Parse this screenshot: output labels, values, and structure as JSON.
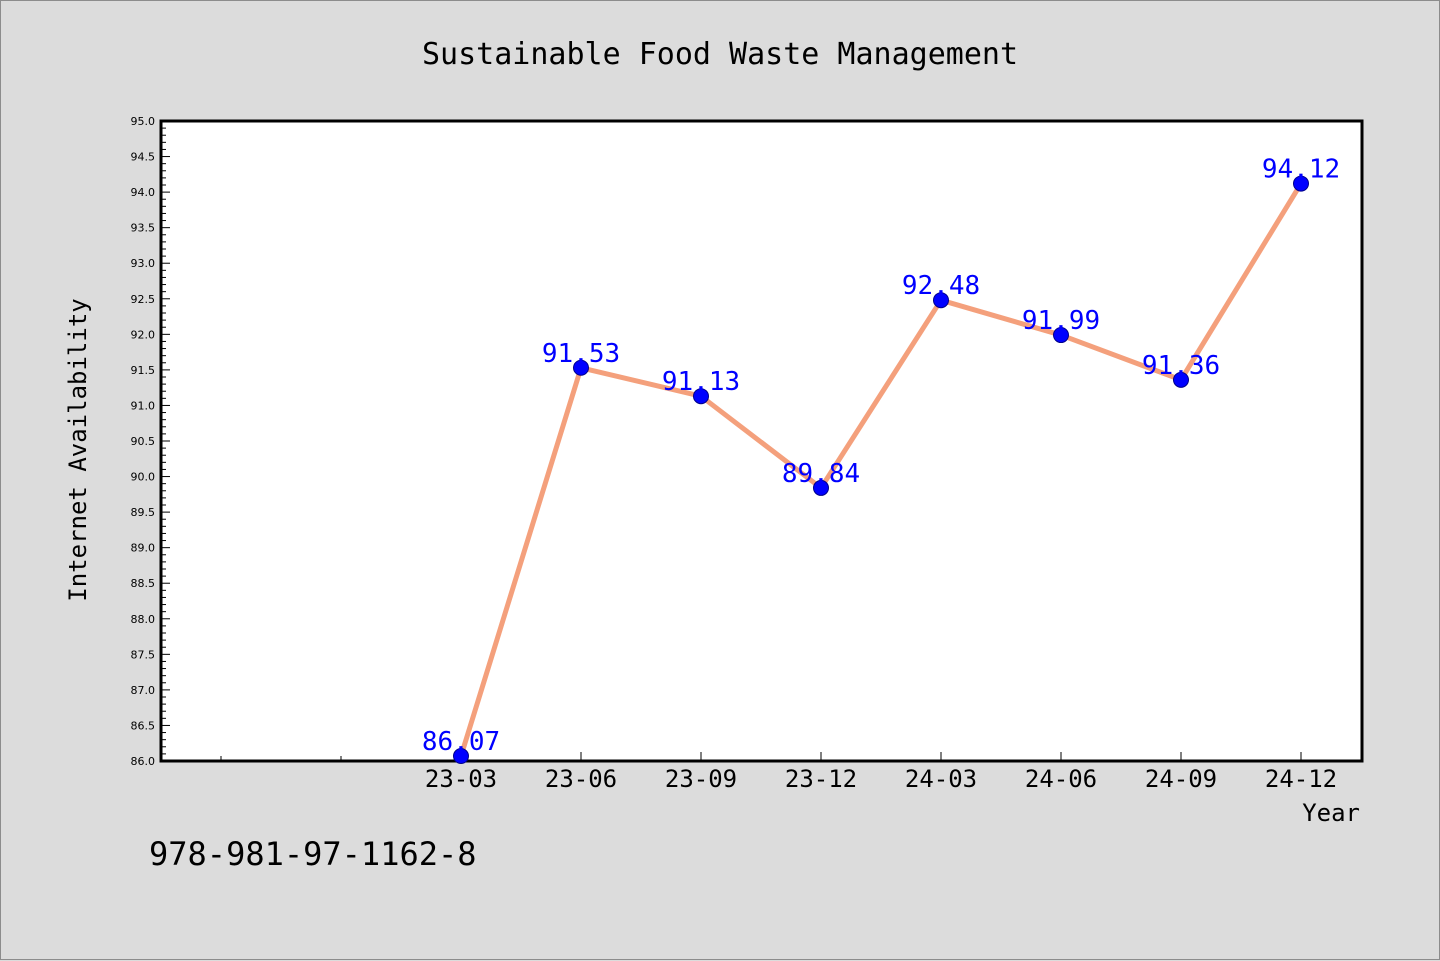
{
  "chart_data": {
    "type": "line",
    "title": "Sustainable Food Waste Management",
    "xlabel": "Year",
    "ylabel": "Internet Availability",
    "categories": [
      "23-03",
      "23-06",
      "23-09",
      "23-12",
      "24-03",
      "24-06",
      "24-09",
      "24-12"
    ],
    "series": [
      {
        "values": [
          86.07,
          91.53,
          91.13,
          89.84,
          92.48,
          91.99,
          91.36,
          94.12
        ]
      }
    ],
    "data_labels": [
      "86.07",
      "91.53",
      "91.13",
      "89.84",
      "92.48",
      "91.99",
      "91.36",
      "94.12"
    ],
    "ylim": [
      86.0,
      95.0
    ],
    "yticks": [
      "86.0",
      "86.5",
      "87.0",
      "87.5",
      "88.0",
      "88.5",
      "89.0",
      "89.5",
      "90.0",
      "90.5",
      "91.0",
      "91.5",
      "92.0",
      "92.5",
      "93.0",
      "93.5",
      "94.0",
      "94.5",
      "95.0"
    ],
    "grid": false,
    "legend": "none",
    "line_color": "#f4a07c",
    "marker_color": "#0000ff",
    "label_color": "#0000ff",
    "plot_background": "#ffffff",
    "page_background": "#dcdcdc"
  },
  "footer": {
    "isbn": "978-981-97-1162-8"
  }
}
